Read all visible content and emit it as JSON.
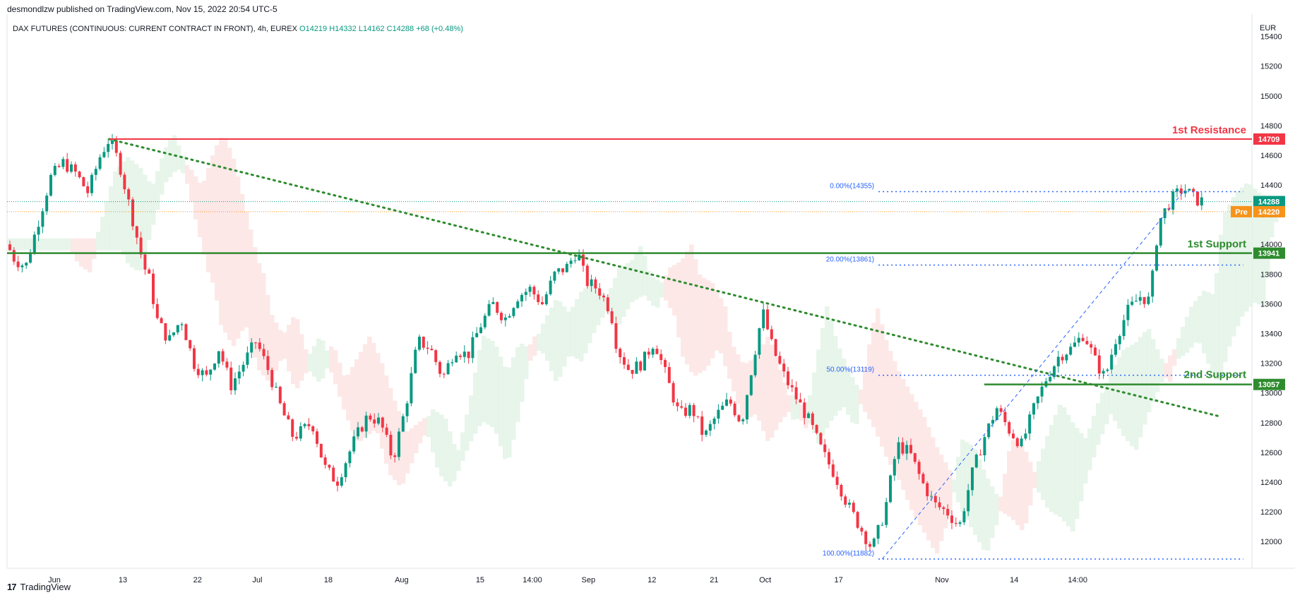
{
  "header": {
    "published": "desmondlzw published on TradingView.com, Nov 15, 2022 20:54 UTC-5"
  },
  "symbol": {
    "name": "DAX FUTURES (CONTINUOUS: CURRENT CONTRACT IN FRONT), 4h, EUREX",
    "open": "O14219",
    "high": "H14332",
    "low": "L14162",
    "close": "C14288",
    "change": "+68 (+0.48%)"
  },
  "currency": "EUR",
  "footer": {
    "brand": "TradingView"
  },
  "colors": {
    "up": "#089981",
    "down": "#f23645",
    "resistance": "#f23645",
    "support": "#2e8b2e",
    "fib": "#2962ff",
    "trendline": "#2e8b2e",
    "cloud_bull": "#e3f3e6",
    "cloud_bear": "#fde4e4",
    "pre": "#f7931a",
    "price": "#089981"
  },
  "chart_data": {
    "type": "candlestick",
    "yaxis": {
      "unit": "EUR",
      "range": [
        11820,
        15550
      ],
      "ticks": [
        12000,
        12200,
        12400,
        12600,
        12800,
        13000,
        13200,
        13400,
        13600,
        13800,
        14000,
        14200,
        14400,
        14600,
        14800,
        15000,
        15200,
        15400
      ]
    },
    "xaxis": {
      "ticks": [
        "Jun",
        "13",
        "22",
        "Jul",
        "18",
        "Aug",
        "15",
        "14:00",
        "Sep",
        "12",
        "21",
        "Oct",
        "17",
        "Nov",
        "14",
        "14:00"
      ]
    },
    "price_path": [
      [
        0,
        14000
      ],
      [
        0.006,
        13900
      ],
      [
        0.015,
        13850
      ],
      [
        0.025,
        14150
      ],
      [
        0.035,
        14450
      ],
      [
        0.045,
        14550
      ],
      [
        0.055,
        14480
      ],
      [
        0.065,
        14350
      ],
      [
        0.075,
        14600
      ],
      [
        0.082,
        14709
      ],
      [
        0.09,
        14550
      ],
      [
        0.1,
        14200
      ],
      [
        0.11,
        13850
      ],
      [
        0.115,
        13750
      ],
      [
        0.12,
        13500
      ],
      [
        0.13,
        13350
      ],
      [
        0.14,
        13500
      ],
      [
        0.15,
        13200
      ],
      [
        0.16,
        13100
      ],
      [
        0.17,
        13300
      ],
      [
        0.18,
        13050
      ],
      [
        0.19,
        13200
      ],
      [
        0.2,
        13350
      ],
      [
        0.21,
        13150
      ],
      [
        0.22,
        12900
      ],
      [
        0.23,
        12700
      ],
      [
        0.245,
        12800
      ],
      [
        0.255,
        12500
      ],
      [
        0.265,
        12400
      ],
      [
        0.28,
        12700
      ],
      [
        0.29,
        12850
      ],
      [
        0.3,
        12800
      ],
      [
        0.31,
        12550
      ],
      [
        0.32,
        12900
      ],
      [
        0.33,
        13350
      ],
      [
        0.34,
        13300
      ],
      [
        0.35,
        13100
      ],
      [
        0.36,
        13300
      ],
      [
        0.37,
        13250
      ],
      [
        0.38,
        13450
      ],
      [
        0.39,
        13600
      ],
      [
        0.4,
        13500
      ],
      [
        0.41,
        13650
      ],
      [
        0.42,
        13700
      ],
      [
        0.43,
        13600
      ],
      [
        0.44,
        13800
      ],
      [
        0.45,
        13850
      ],
      [
        0.458,
        13960
      ],
      [
        0.465,
        13750
      ],
      [
        0.475,
        13700
      ],
      [
        0.485,
        13550
      ],
      [
        0.49,
        13300
      ],
      [
        0.5,
        13150
      ],
      [
        0.51,
        13200
      ],
      [
        0.52,
        13350
      ],
      [
        0.53,
        13100
      ],
      [
        0.54,
        12850
      ],
      [
        0.55,
        12900
      ],
      [
        0.56,
        12700
      ],
      [
        0.57,
        12850
      ],
      [
        0.58,
        12950
      ],
      [
        0.59,
        12800
      ],
      [
        0.6,
        13250
      ],
      [
        0.607,
        13550
      ],
      [
        0.615,
        13300
      ],
      [
        0.625,
        13100
      ],
      [
        0.635,
        12950
      ],
      [
        0.645,
        12800
      ],
      [
        0.655,
        12600
      ],
      [
        0.665,
        12450
      ],
      [
        0.675,
        12250
      ],
      [
        0.685,
        12100
      ],
      [
        0.695,
        11950
      ],
      [
        0.705,
        12200
      ],
      [
        0.715,
        12650
      ],
      [
        0.725,
        12600
      ],
      [
        0.735,
        12400
      ],
      [
        0.745,
        12250
      ],
      [
        0.755,
        12200
      ],
      [
        0.765,
        12100
      ],
      [
        0.775,
        12450
      ],
      [
        0.785,
        12700
      ],
      [
        0.795,
        12900
      ],
      [
        0.805,
        12750
      ],
      [
        0.815,
        12650
      ],
      [
        0.825,
        12900
      ],
      [
        0.835,
        13100
      ],
      [
        0.845,
        13250
      ],
      [
        0.855,
        13300
      ],
      [
        0.865,
        13400
      ],
      [
        0.875,
        13200
      ],
      [
        0.882,
        13100
      ],
      [
        0.89,
        13350
      ],
      [
        0.9,
        13550
      ],
      [
        0.91,
        13650
      ],
      [
        0.918,
        13620
      ],
      [
        0.925,
        14150
      ],
      [
        0.935,
        14300
      ],
      [
        0.945,
        14380
      ],
      [
        0.955,
        14300
      ],
      [
        0.962,
        14288
      ]
    ],
    "levels": {
      "resistance": {
        "name": "1st Resistance",
        "value": 14709
      },
      "support1": {
        "name": "1st Support",
        "value": 13941
      },
      "support2": {
        "name": "2nd Support",
        "value": 13057
      }
    },
    "fibonacci": [
      {
        "label": "0.00%(14355)",
        "value": 14355
      },
      {
        "label": "20.00%(13861)",
        "value": 13861
      },
      {
        "label": "50.00%(13119)",
        "value": 13119
      },
      {
        "label": "100.00%(11882)",
        "value": 11882
      }
    ],
    "price_tags": {
      "last": "14288",
      "pre_label": "Pre",
      "pre_value": "14220"
    },
    "values": {
      "last": 14288,
      "pre": 14220
    }
  }
}
